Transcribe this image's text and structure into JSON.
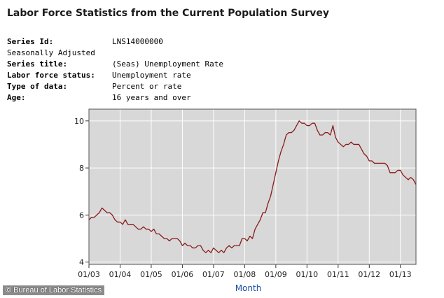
{
  "header": {
    "title": "Labor Force Statistics from the Current Population Survey"
  },
  "series_info": [
    {
      "label": "Series Id:",
      "value": "LNS14000000"
    },
    {
      "label": "Seasonally Adjusted",
      "value": ""
    },
    {
      "label": "Series title:",
      "value": "(Seas) Unemployment Rate"
    },
    {
      "label": "Labor force status:",
      "value": "Unemployment rate"
    },
    {
      "label": "Type of data:",
      "value": "Percent or rate"
    },
    {
      "label": "Age:",
      "value": "16 years and over"
    }
  ],
  "credit": "© Bureau of Labor Statistics",
  "colors": {
    "plot_background": "#d8d8d8",
    "gridline": "#ffffff",
    "line": "#8b1a1a",
    "axis_title": "#1a4fa3"
  },
  "chart_data": {
    "type": "line",
    "title": "",
    "xlabel": "Month",
    "ylabel": "",
    "grid": true,
    "legend": "none",
    "x_tick_labels": [
      "01/03",
      "01/04",
      "01/05",
      "01/06",
      "01/07",
      "01/08",
      "01/09",
      "01/10",
      "01/11",
      "01/12",
      "01/13"
    ],
    "y_ticks": [
      4,
      6,
      8,
      10
    ],
    "ylim": [
      3.9,
      10.5
    ],
    "xlim": [
      "01/03",
      "07/13"
    ],
    "series": [
      {
        "start": "01/03",
        "frequency": "monthly",
        "values": [
          5.8,
          5.9,
          5.9,
          6.0,
          6.1,
          6.3,
          6.2,
          6.1,
          6.1,
          6.0,
          5.8,
          5.7,
          5.7,
          5.6,
          5.8,
          5.6,
          5.6,
          5.6,
          5.5,
          5.4,
          5.4,
          5.5,
          5.4,
          5.4,
          5.3,
          5.4,
          5.2,
          5.2,
          5.1,
          5.0,
          5.0,
          4.9,
          5.0,
          5.0,
          5.0,
          4.9,
          4.7,
          4.8,
          4.7,
          4.7,
          4.6,
          4.6,
          4.7,
          4.7,
          4.5,
          4.4,
          4.5,
          4.4,
          4.6,
          4.5,
          4.4,
          4.5,
          4.4,
          4.6,
          4.7,
          4.6,
          4.7,
          4.7,
          4.7,
          5.0,
          5.0,
          4.9,
          5.1,
          5.0,
          5.4,
          5.6,
          5.8,
          6.1,
          6.1,
          6.5,
          6.8,
          7.3,
          7.8,
          8.3,
          8.7,
          9.0,
          9.4,
          9.5,
          9.5,
          9.6,
          9.8,
          10.0,
          9.9,
          9.9,
          9.8,
          9.8,
          9.9,
          9.9,
          9.6,
          9.4,
          9.4,
          9.5,
          9.5,
          9.4,
          9.8,
          9.3,
          9.1,
          9.0,
          8.9,
          9.0,
          9.0,
          9.1,
          9.0,
          9.0,
          9.0,
          8.8,
          8.6,
          8.5,
          8.3,
          8.3,
          8.2,
          8.2,
          8.2,
          8.2,
          8.2,
          8.1,
          7.8,
          7.8,
          7.8,
          7.9,
          7.9,
          7.7,
          7.6,
          7.5,
          7.6,
          7.5,
          7.3
        ]
      }
    ]
  }
}
